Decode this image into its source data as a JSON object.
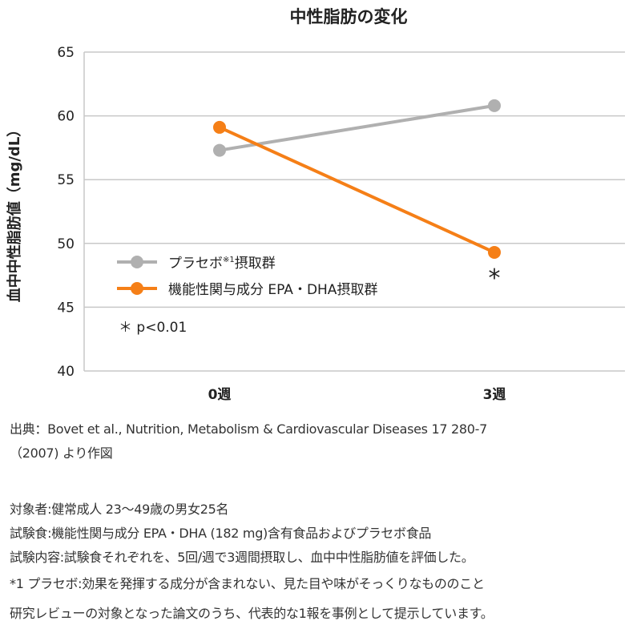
{
  "chart_data": {
    "type": "line",
    "title": "中性脂肪の変化",
    "ylabel": "血中中性脂肪値（mg/dL）",
    "xlabel": "",
    "categories": [
      "0週",
      "3週"
    ],
    "ylim": [
      40,
      65
    ],
    "yticks": [
      40,
      45,
      50,
      55,
      60,
      65
    ],
    "grid": true,
    "legend_position": "lower-left",
    "series": [
      {
        "name": "プラセボ※1摂取群",
        "color": "#b0b0b0",
        "values": [
          57.3,
          60.8
        ]
      },
      {
        "name": "機能性関与成分 EPA・DHA摂取群",
        "color": "#f57f17",
        "values": [
          59.1,
          49.3
        ]
      }
    ],
    "annotations": [
      {
        "text": "*",
        "category": "3週",
        "series": 1
      },
      {
        "text": "＊ p<0.01"
      }
    ]
  },
  "legend": {
    "placebo_main": "プラセボ",
    "placebo_sup": "※1",
    "placebo_suffix": "摂取群",
    "epa": "機能性関与成分 EPA・DHA摂取群"
  },
  "notes": {
    "source_line1": "出典：Bovet et al., Nutrition, Metabolism & Cardiovascular Diseases 17 280-7",
    "source_line2": "（2007) より作図",
    "subjects": "対象者:健常成人 23〜49歳の男女25名",
    "test_food": "試験食:機能性関与成分 EPA・DHA (182 mg)含有食品およびプラセボ食品",
    "test_content": "試験内容:試験食それぞれを、5回/週で3週間摂取し、血中中性脂肪値を評価した。",
    "footnote": "*1 プラセボ:効果を発揮する成分が含まれない、見た目や味がそっくりなもののこと",
    "review": "研究レビューの対象となった論文のうち、代表的な1報を事例として提示しています。"
  }
}
